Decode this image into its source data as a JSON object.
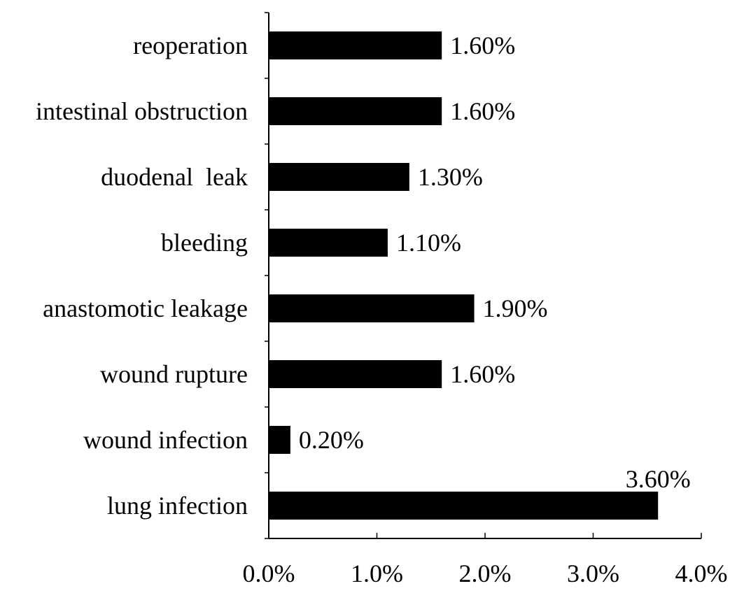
{
  "chart_data": {
    "type": "bar",
    "orientation": "horizontal",
    "categories": [
      "reoperation",
      "intestinal obstruction",
      "duodenal  leak",
      "bleeding",
      "anastomotic leakage",
      "wound rupture",
      "wound infection",
      "lung infection"
    ],
    "values": [
      1.6,
      1.6,
      1.3,
      1.1,
      1.9,
      1.6,
      0.2,
      3.6
    ],
    "data_labels": [
      "1.60%",
      "1.60%",
      "1.30%",
      "1.10%",
      "1.90%",
      "1.60%",
      "0.20%",
      "3.60%"
    ],
    "xlim": [
      0,
      4
    ],
    "x_ticks": [
      0,
      1,
      2,
      3,
      4
    ],
    "x_tick_labels": [
      "0.0%",
      "1.0%",
      "2.0%",
      "3.0%",
      "4.0%"
    ],
    "title": "",
    "xlabel": "",
    "ylabel": "",
    "grid": false,
    "legend": "none",
    "bar_color": "#000000"
  }
}
